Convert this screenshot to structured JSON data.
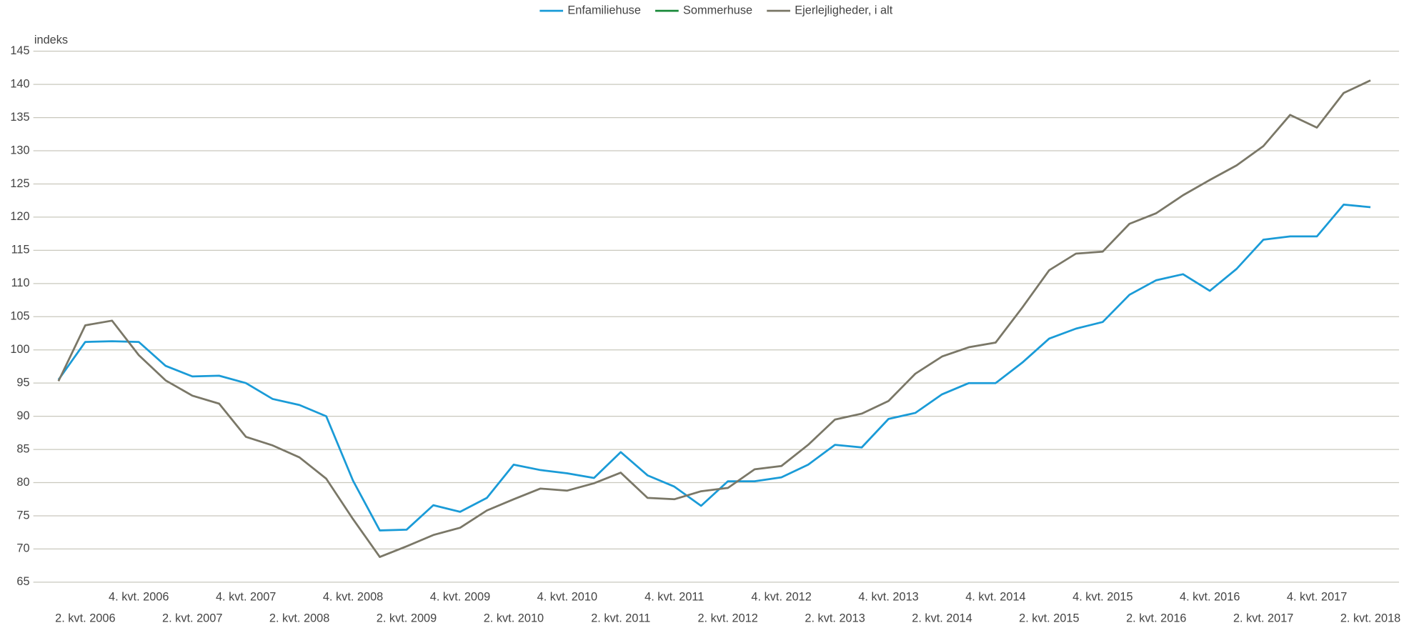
{
  "chart_data": {
    "type": "line",
    "y_label": "indeks",
    "categories": [
      null,
      "2. kvt. 2006",
      null,
      "4. kvt. 2006",
      null,
      "2. kvt. 2007",
      null,
      "4. kvt. 2007",
      null,
      "2. kvt. 2008",
      null,
      "4. kvt. 2008",
      null,
      "2. kvt. 2009",
      null,
      "4. kvt. 2009",
      null,
      "2. kvt. 2010",
      null,
      "4. kvt. 2010",
      null,
      "2. kvt. 2011",
      null,
      "4. kvt. 2011",
      null,
      "2. kvt. 2012",
      null,
      "4. kvt. 2012",
      null,
      "2. kvt. 2013",
      null,
      "4. kvt. 2013",
      null,
      "2. kvt. 2014",
      null,
      "4. kvt. 2014",
      null,
      "2. kvt. 2015",
      null,
      "4. kvt. 2015",
      null,
      "2. kvt. 2016",
      null,
      "4. kvt. 2016",
      null,
      "2. kvt. 2017",
      null,
      "4. kvt. 2017",
      null,
      "2. kvt. 2018"
    ],
    "series": [
      {
        "name": "Enfamiliehuse",
        "color": "#1a9bd7",
        "values": [
          95.5,
          101.2,
          101.3,
          101.2,
          97.6,
          96,
          96.1,
          95,
          92.6,
          91.7,
          90,
          80.3,
          72.8,
          72.9,
          76.6,
          75.6,
          77.7,
          82.7,
          81.9,
          81.4,
          80.7,
          84.6,
          81.1,
          79.4,
          76.5,
          80.2,
          80.2,
          80.8,
          82.7,
          85.7,
          85.3,
          89.6,
          90.5,
          93.3,
          95,
          95,
          98.1,
          101.7,
          103.2,
          104.2,
          108.3,
          110.5,
          111.4,
          108.9,
          112.2,
          116.6,
          117.1,
          117.1,
          121.9,
          121.5
        ]
      },
      {
        "name": "Sommerhuse",
        "color": "#1a8a3a",
        "values": [
          null,
          null,
          null,
          null,
          null,
          null,
          null,
          null,
          null,
          null,
          null,
          null,
          null,
          null,
          null,
          null,
          null,
          null,
          null,
          null,
          null,
          null,
          null,
          null,
          null,
          null,
          null,
          null,
          null,
          null,
          null,
          null,
          null,
          null,
          null,
          null,
          null,
          null,
          null,
          null,
          null,
          null,
          null,
          null,
          null,
          null,
          null,
          null,
          null,
          null
        ]
      },
      {
        "name": "Ejerlejligheder, i alt",
        "color": "#7a7767",
        "values": [
          95.3,
          103.7,
          104.4,
          99.2,
          95.4,
          93.1,
          91.9,
          86.9,
          85.6,
          83.8,
          80.6,
          74.5,
          68.8,
          70.4,
          72.1,
          73.2,
          75.8,
          77.5,
          79.1,
          78.8,
          79.9,
          81.5,
          77.7,
          77.5,
          78.7,
          79.2,
          82,
          82.5,
          85.7,
          89.5,
          90.4,
          92.3,
          96.4,
          99,
          100.4,
          101.1,
          106.4,
          112,
          114.5,
          114.8,
          119,
          120.6,
          123.3,
          125.6,
          127.8,
          130.7,
          135.4,
          133.5,
          138.7,
          140.6
        ]
      }
    ],
    "ylim": [
      65,
      145
    ],
    "yticks": [
      65,
      70,
      75,
      80,
      85,
      90,
      95,
      100,
      105,
      110,
      115,
      120,
      125,
      130,
      135,
      140,
      145
    ],
    "grid": true,
    "legend": "top"
  }
}
